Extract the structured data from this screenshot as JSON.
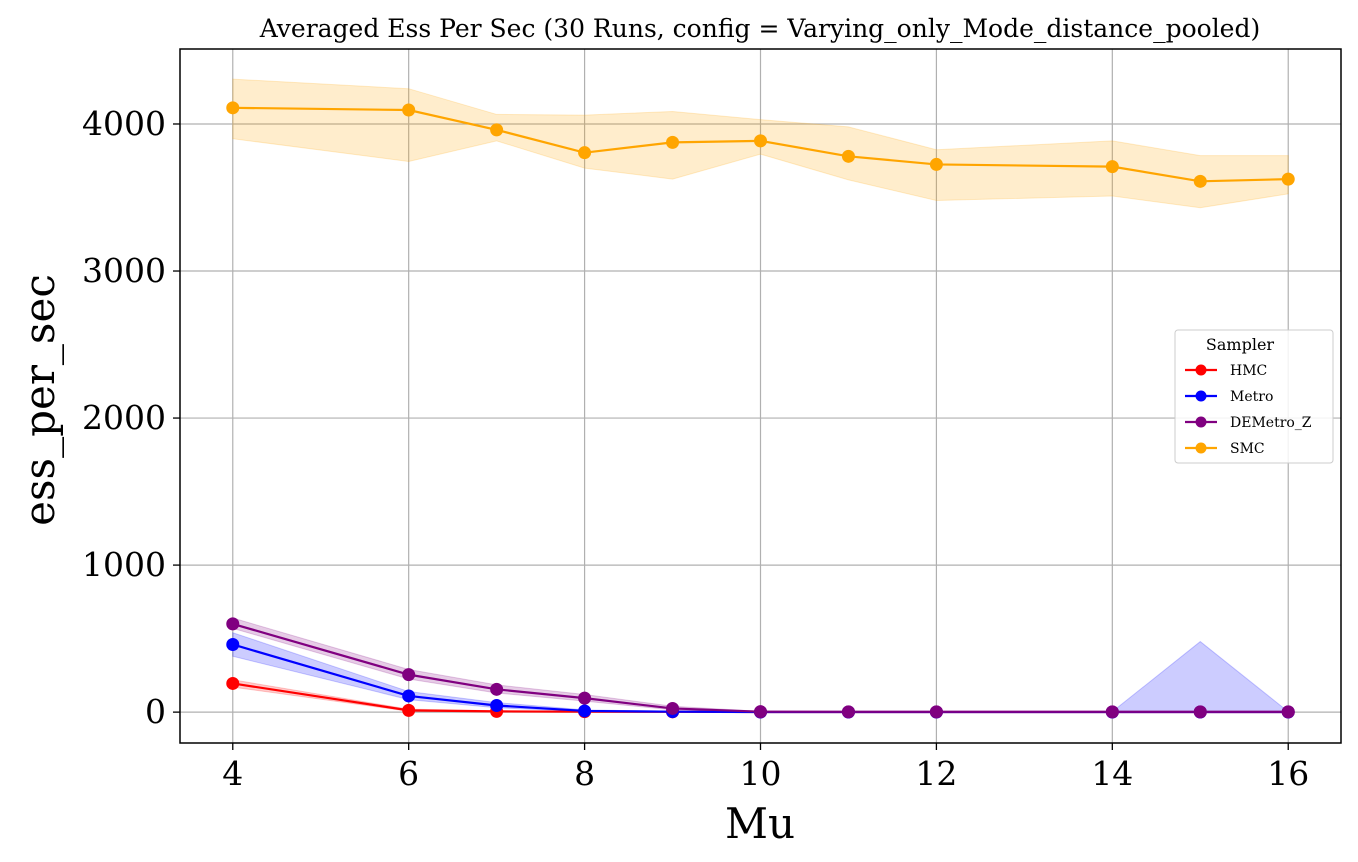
{
  "chart_data": {
    "type": "line",
    "title": "Averaged Ess Per Sec (30 Runs, config = Varying_only_Mode_distance_pooled)",
    "xlabel": "Mu",
    "ylabel": "ess_per_sec",
    "xlim": [
      3.4,
      16.6
    ],
    "ylim": [
      -210,
      4510
    ],
    "xticks": [
      4,
      6,
      8,
      10,
      12,
      14,
      16
    ],
    "yticks": [
      0,
      1000,
      2000,
      3000,
      4000
    ],
    "grid": true,
    "legend": {
      "title": "Sampler",
      "placement": "center-right"
    },
    "x": [
      4,
      6,
      7,
      8,
      9,
      10,
      11,
      12,
      14,
      15,
      16
    ],
    "series": [
      {
        "name": "HMC",
        "color": "#ff0000",
        "values": [
          195,
          12,
          5,
          3,
          2,
          1,
          1,
          1,
          1,
          1,
          1
        ],
        "lower": [
          170,
          6,
          2,
          1,
          1,
          0,
          0,
          0,
          0,
          0,
          0
        ],
        "upper": [
          220,
          20,
          9,
          6,
          4,
          2,
          2,
          2,
          2,
          2,
          2
        ]
      },
      {
        "name": "Metro",
        "color": "#0000ff",
        "values": [
          460,
          110,
          45,
          8,
          3,
          1,
          1,
          1,
          1,
          1,
          1
        ],
        "lower": [
          380,
          85,
          30,
          4,
          1,
          0,
          0,
          0,
          0,
          0,
          0
        ],
        "upper": [
          540,
          140,
          65,
          15,
          6,
          3,
          3,
          3,
          3,
          480,
          3
        ]
      },
      {
        "name": "DEMetro_Z",
        "color": "#800080",
        "values": [
          600,
          255,
          155,
          95,
          25,
          3,
          2,
          2,
          2,
          2,
          2
        ],
        "lower": [
          570,
          225,
          130,
          75,
          15,
          1,
          1,
          1,
          1,
          1,
          1
        ],
        "upper": [
          640,
          290,
          185,
          120,
          40,
          5,
          3,
          3,
          3,
          3,
          3
        ]
      },
      {
        "name": "SMC",
        "color": "#ffa500",
        "values": [
          4110,
          4095,
          3960,
          3805,
          3875,
          3885,
          3780,
          3725,
          3710,
          3610,
          3625
        ],
        "lower": [
          3900,
          3745,
          3885,
          3700,
          3625,
          3795,
          3620,
          3480,
          3510,
          3430,
          3525
        ],
        "upper": [
          4305,
          4240,
          4065,
          4060,
          4085,
          4030,
          3980,
          3825,
          3885,
          3785,
          3785
        ]
      }
    ]
  }
}
